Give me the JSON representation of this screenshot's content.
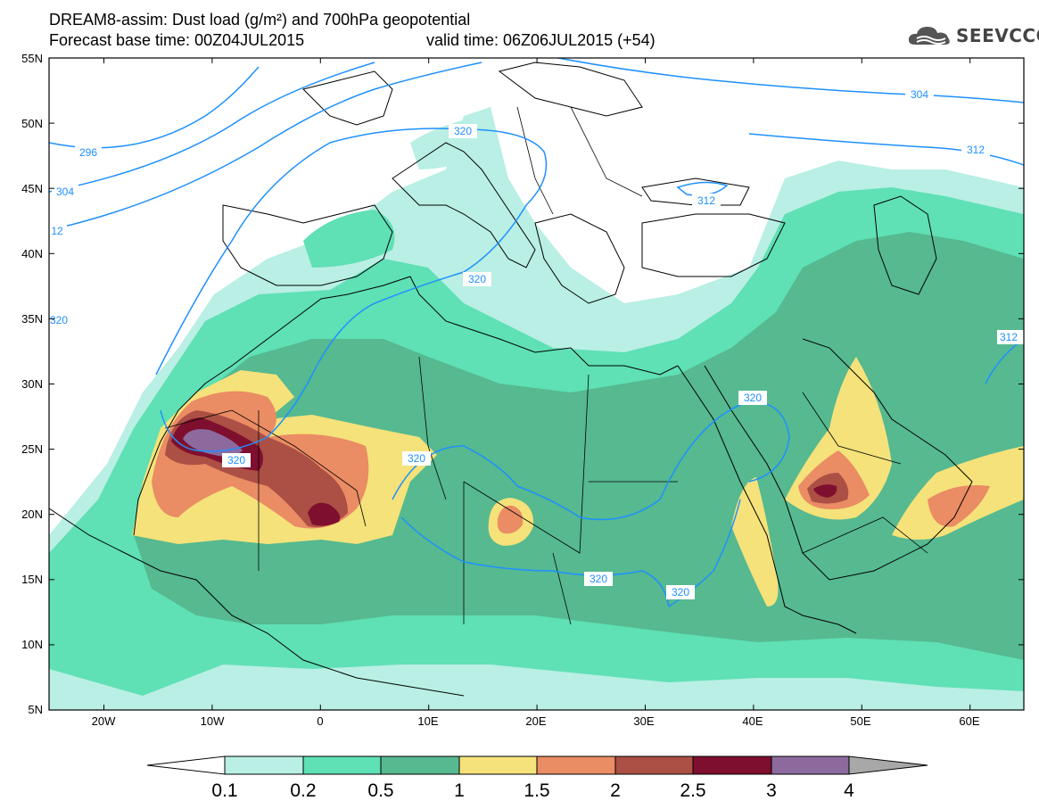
{
  "header": {
    "line1": "DREAM8-assim: Dust load (g/m²) and 700hPa geopotential",
    "line2_left": "Forecast base time: 00Z04JUL2015",
    "line2_right": "valid time: 06Z06JUL2015 (+54)"
  },
  "logo": {
    "icon": "cloud-logo-icon",
    "text": "SEEVCCC"
  },
  "axes": {
    "lat_labels": [
      "55N",
      "50N",
      "45N",
      "40N",
      "35N",
      "30N",
      "25N",
      "20N",
      "15N",
      "10N",
      "5N"
    ],
    "lon_labels": [
      "20W",
      "10W",
      "0",
      "10E",
      "20E",
      "30E",
      "40E",
      "50E",
      "60E"
    ]
  },
  "contours": {
    "color": "#1e90ff",
    "labels": [
      "296",
      "304",
      "12",
      "320",
      "304",
      "312",
      "312",
      "320",
      "320",
      "320",
      "320",
      "320",
      "320",
      "320",
      "312"
    ]
  },
  "colorbar": {
    "colors": [
      "#ffffff",
      "#b9efe4",
      "#5fe0b5",
      "#56b990",
      "#f5e27a",
      "#ea8c64",
      "#ac4f44",
      "#7f0f2e",
      "#8c6a9e",
      "#a8a8a8"
    ],
    "labels": [
      "0.1",
      "0.2",
      "0.5",
      "1",
      "1.5",
      "2",
      "2.5",
      "3",
      "4"
    ]
  },
  "dust_colors": {
    "c01": "#b9efe4",
    "c02": "#5fe0b5",
    "c05": "#56b990",
    "c1": "#f5e27a",
    "c15": "#ea8c64",
    "c2": "#ac4f44",
    "c25": "#7f0f2e",
    "c3": "#8c6a9e"
  }
}
